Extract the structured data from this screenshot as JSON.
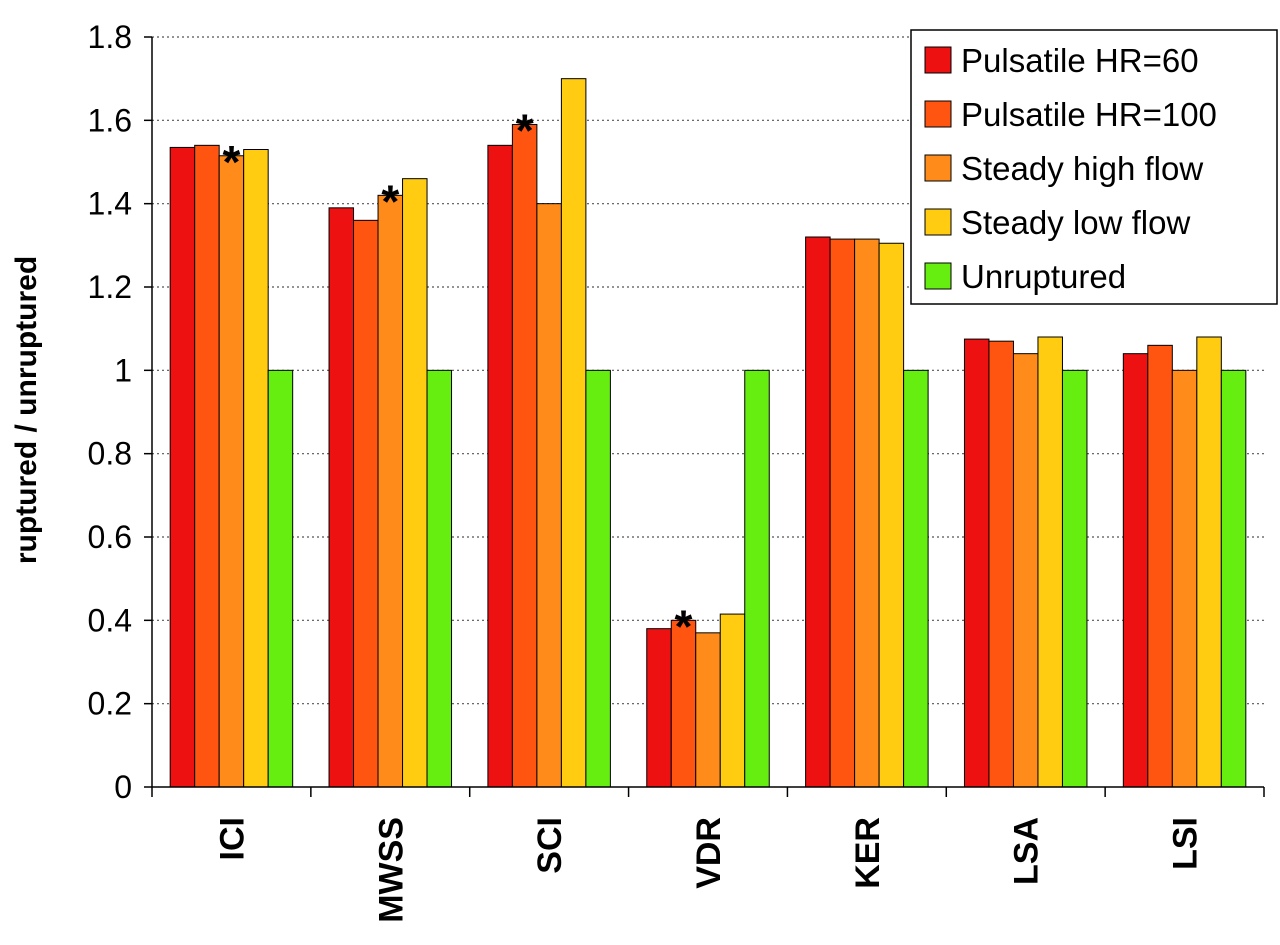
{
  "chart_data": {
    "type": "bar",
    "title": "",
    "xlabel": "",
    "ylabel": "ruptured / unruptured",
    "ylim": [
      0,
      1.8
    ],
    "yticks": [
      "0",
      "0.2",
      "0.4",
      "0.6",
      "0.8",
      "1",
      "1.2",
      "1.4",
      "1.6",
      "1.8"
    ],
    "grid": "horizontal dotted",
    "legend_position": "top-right",
    "categories": [
      "ICI",
      "MWSS",
      "SCI",
      "VDR",
      "KER",
      "LSA",
      "LSI"
    ],
    "series": [
      {
        "name": "Pulsatile HR=60",
        "color": "#ee1111",
        "values": [
          1.535,
          1.39,
          1.54,
          0.38,
          1.32,
          1.075,
          1.04
        ]
      },
      {
        "name": "Pulsatile HR=100",
        "color": "#ff5511",
        "values": [
          1.54,
          1.36,
          1.59,
          0.4,
          1.315,
          1.07,
          1.06
        ]
      },
      {
        "name": "Steady high flow",
        "color": "#ff8c1a",
        "values": [
          1.515,
          1.42,
          1.4,
          0.37,
          1.315,
          1.04,
          1.0
        ]
      },
      {
        "name": "Steady low flow",
        "color": "#ffcc11",
        "values": [
          1.53,
          1.46,
          1.7,
          0.415,
          1.305,
          1.08,
          1.08
        ]
      },
      {
        "name": "Unruptured",
        "color": "#66ee11",
        "values": [
          1.0,
          1.0,
          1.0,
          1.0,
          1.0,
          1.0,
          1.0
        ]
      }
    ],
    "annotations": [
      {
        "text": "*",
        "category": "ICI",
        "series": 2
      },
      {
        "text": "*",
        "category": "MWSS",
        "series": 2
      },
      {
        "text": "*",
        "category": "SCI",
        "series": 1
      },
      {
        "text": "*",
        "category": "VDR",
        "series": 1
      }
    ]
  }
}
